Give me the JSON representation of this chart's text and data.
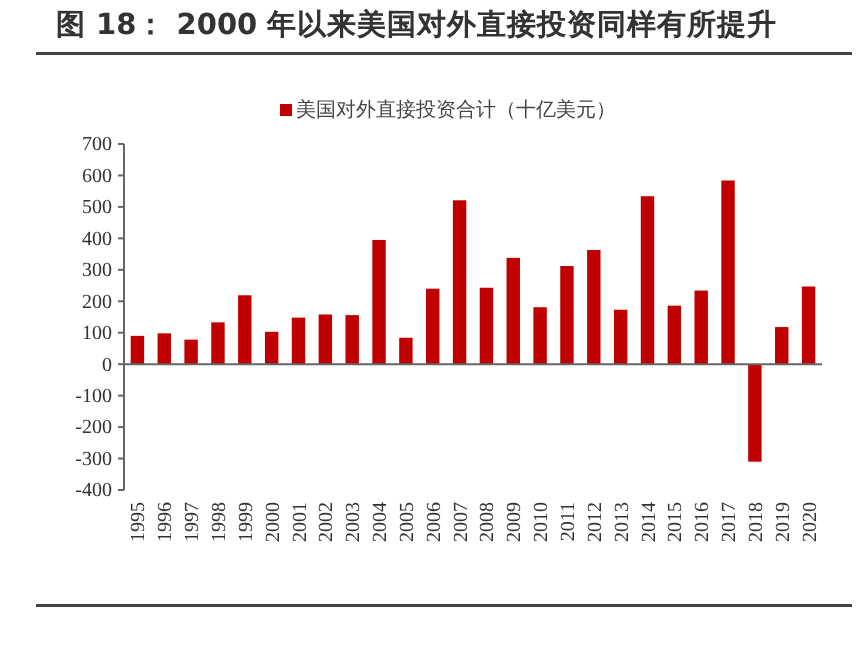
{
  "chart_data": {
    "type": "bar",
    "title": "图 18： 2000 年以来美国对外直接投资同样有所提升",
    "categories": [
      "1995",
      "1996",
      "1997",
      "1998",
      "1999",
      "2000",
      "2001",
      "2002",
      "2003",
      "2004",
      "2005",
      "2006",
      "2007",
      "2008",
      "2009",
      "2010",
      "2011",
      "2012",
      "2013",
      "2014",
      "2015",
      "2016",
      "2017",
      "2018",
      "2019",
      "2020"
    ],
    "series": [
      {
        "name": "美国对外直接投资合计（十亿美元）",
        "color": "#c00000",
        "values": [
          90,
          98,
          78,
          133,
          219,
          103,
          148,
          158,
          156,
          395,
          84,
          240,
          521,
          243,
          338,
          181,
          312,
          363,
          173,
          534,
          186,
          234,
          584,
          -310,
          118,
          247
        ]
      }
    ],
    "ylim": [
      -400,
      700
    ],
    "yticks": [
      -400,
      -300,
      -200,
      -100,
      0,
      100,
      200,
      300,
      400,
      500,
      600,
      700
    ],
    "legend": "top right"
  }
}
